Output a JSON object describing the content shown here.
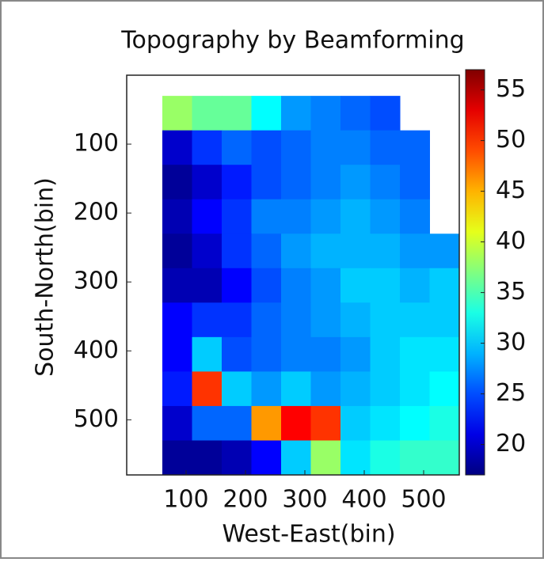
{
  "chart_data": {
    "type": "heatmap",
    "title": "Topography by Beamforming",
    "x_label": "West-East(bin)",
    "y_label": "South-North(bin)",
    "x_edges": [
      60,
      110,
      160,
      210,
      260,
      310,
      360,
      410,
      460,
      510,
      560
    ],
    "y_edges": [
      30,
      80,
      130,
      180,
      230,
      280,
      330,
      380,
      430,
      480,
      530,
      580
    ],
    "values": [
      [
        38,
        36,
        36,
        32,
        28,
        27,
        26,
        25,
        null,
        null
      ],
      [
        20,
        24,
        26,
        25,
        26,
        27,
        27,
        26,
        26,
        null
      ],
      [
        18,
        20,
        23,
        25,
        26,
        27,
        28,
        27,
        26,
        null
      ],
      [
        19,
        22,
        24,
        27,
        27,
        28,
        29,
        28,
        27,
        null
      ],
      [
        18,
        20,
        24,
        26,
        28,
        29,
        29,
        29,
        28,
        28
      ],
      [
        19,
        19,
        22,
        25,
        27,
        28,
        30,
        30,
        29,
        30
      ],
      [
        22,
        24,
        24,
        26,
        27,
        28,
        29,
        30,
        30,
        30
      ],
      [
        22,
        30,
        25,
        26,
        27,
        27,
        28,
        30,
        31,
        31
      ],
      [
        23,
        50,
        30,
        28,
        30,
        28,
        29,
        30,
        31,
        32
      ],
      [
        20,
        26,
        26,
        46,
        52,
        50,
        30,
        31,
        32,
        33
      ],
      [
        18,
        18,
        19,
        22,
        30,
        38,
        31,
        33,
        34,
        34
      ]
    ],
    "xlim": [
      0,
      560
    ],
    "xticks": [
      100,
      200,
      300,
      400,
      500
    ],
    "ylim": [
      580,
      0
    ],
    "yticks": [
      100,
      200,
      300,
      400,
      500
    ],
    "colormap": "jet",
    "clim": [
      17,
      57
    ],
    "cticks": [
      20,
      25,
      30,
      35,
      40,
      45,
      50,
      55
    ],
    "grid": false
  }
}
